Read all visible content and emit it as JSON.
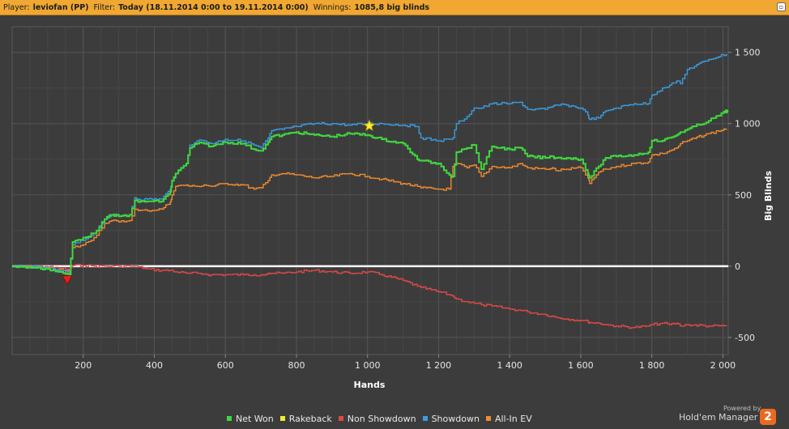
{
  "header": {
    "player_label": "Player:",
    "player_value": "leviofan (PP)",
    "filter_label": "Filter:",
    "filter_value": "Today (18.11.2014 0:00 to 19.11.2014 0:00)",
    "winnings_label": "Winnings:",
    "winnings_value": "1085,8 big blinds"
  },
  "colors": {
    "background": "#3c3c3c",
    "header": "#f0a832",
    "zero_line": "#ffffff",
    "marker_max": "#ffee33",
    "marker_min": "#e02020"
  },
  "chart_data": {
    "type": "line",
    "xlabel": "Hands",
    "ylabel": "Big Blinds",
    "xlim": [
      0,
      2015
    ],
    "ylim": [
      -620,
      1680
    ],
    "x_ticks": [
      200,
      400,
      600,
      800,
      1000,
      1200,
      1400,
      1600,
      1800,
      2000
    ],
    "x_tick_labels": [
      "200",
      "400",
      "600",
      "800",
      "1 000",
      "1 200",
      "1 400",
      "1 600",
      "1 800",
      "2 000"
    ],
    "y_ticks": [
      -500,
      0,
      500,
      1000,
      1500
    ],
    "y_tick_labels": [
      "-500",
      "0",
      "500",
      "1 000",
      "1 500"
    ],
    "grid": true,
    "legend_position": "bottom",
    "series": [
      {
        "name": "Showdown",
        "color": "#3a9be0",
        "x": [
          0,
          60,
          100,
          130,
          150,
          160,
          170,
          200,
          230,
          260,
          280,
          300,
          330,
          345,
          355,
          380,
          420,
          445,
          450,
          460,
          490,
          500,
          520,
          540,
          560,
          600,
          650,
          680,
          700,
          720,
          730,
          760,
          800,
          850,
          900,
          950,
          1000,
          1040,
          1100,
          1140,
          1150,
          1200,
          1230,
          1240,
          1250,
          1280,
          1300,
          1320,
          1350,
          1400,
          1430,
          1450,
          1500,
          1520,
          1530,
          1560,
          1600,
          1620,
          1625,
          1650,
          1670,
          1700,
          1750,
          1790,
          1800,
          1830,
          1850,
          1870,
          1880,
          1900,
          1960,
          2010
        ],
        "y": [
          0,
          -5,
          -15,
          -30,
          -40,
          -45,
          150,
          180,
          230,
          330,
          360,
          350,
          360,
          480,
          470,
          470,
          470,
          540,
          600,
          650,
          720,
          850,
          880,
          880,
          860,
          890,
          880,
          850,
          830,
          900,
          950,
          960,
          980,
          1000,
          1000,
          990,
          1000,
          1000,
          990,
          980,
          900,
          880,
          890,
          900,
          1000,
          1050,
          1110,
          1110,
          1140,
          1140,
          1150,
          1100,
          1100,
          1120,
          1130,
          1130,
          1110,
          1060,
          1030,
          1040,
          1090,
          1110,
          1140,
          1140,
          1200,
          1250,
          1270,
          1300,
          1280,
          1380,
          1450,
          1490
        ]
      },
      {
        "name": "Net Won",
        "color": "#3fd83f",
        "x": [
          0,
          60,
          100,
          130,
          150,
          160,
          170,
          200,
          230,
          260,
          280,
          300,
          330,
          345,
          355,
          380,
          420,
          445,
          450,
          460,
          490,
          500,
          520,
          540,
          560,
          600,
          650,
          680,
          700,
          720,
          730,
          760,
          800,
          850,
          900,
          950,
          1000,
          1040,
          1100,
          1140,
          1150,
          1200,
          1230,
          1240,
          1250,
          1280,
          1300,
          1320,
          1350,
          1400,
          1430,
          1450,
          1500,
          1520,
          1530,
          1560,
          1600,
          1620,
          1625,
          1650,
          1670,
          1700,
          1750,
          1790,
          1800,
          1830,
          1850,
          1870,
          1880,
          1900,
          1960,
          2010
        ],
        "y": [
          0,
          -10,
          -20,
          -40,
          -55,
          -60,
          170,
          200,
          230,
          330,
          360,
          350,
          360,
          460,
          450,
          455,
          455,
          520,
          600,
          650,
          720,
          830,
          860,
          860,
          840,
          870,
          860,
          820,
          810,
          870,
          910,
          920,
          940,
          920,
          910,
          930,
          920,
          890,
          860,
          750,
          740,
          720,
          640,
          630,
          800,
          830,
          850,
          680,
          840,
          820,
          830,
          770,
          760,
          770,
          760,
          760,
          750,
          650,
          620,
          700,
          760,
          770,
          780,
          800,
          880,
          880,
          900,
          920,
          940,
          960,
          1020,
          1085.8
        ]
      },
      {
        "name": "All-In EV",
        "color": "#f08a30",
        "x": [
          0,
          60,
          100,
          130,
          150,
          160,
          170,
          200,
          230,
          260,
          280,
          300,
          330,
          345,
          355,
          380,
          420,
          445,
          450,
          460,
          490,
          500,
          520,
          540,
          560,
          600,
          650,
          680,
          700,
          720,
          730,
          760,
          800,
          850,
          900,
          950,
          1000,
          1040,
          1100,
          1140,
          1150,
          1200,
          1230,
          1240,
          1250,
          1280,
          1300,
          1320,
          1350,
          1400,
          1430,
          1450,
          1500,
          1520,
          1530,
          1560,
          1600,
          1620,
          1625,
          1650,
          1670,
          1700,
          1750,
          1790,
          1800,
          1830,
          1850,
          1870,
          1880,
          1900,
          1960,
          2010
        ],
        "y": [
          0,
          -5,
          -10,
          -25,
          -30,
          -35,
          130,
          150,
          200,
          300,
          320,
          310,
          320,
          400,
          390,
          390,
          400,
          450,
          500,
          560,
          570,
          560,
          560,
          570,
          560,
          580,
          570,
          540,
          550,
          600,
          640,
          650,
          640,
          620,
          630,
          650,
          630,
          610,
          580,
          560,
          550,
          540,
          540,
          700,
          720,
          690,
          710,
          630,
          700,
          690,
          720,
          690,
          680,
          690,
          670,
          680,
          690,
          620,
          580,
          660,
          680,
          700,
          720,
          730,
          780,
          790,
          810,
          830,
          860,
          880,
          930,
          965
        ]
      },
      {
        "name": "Non Showdown",
        "color": "#e04848",
        "x": [
          0,
          60,
          100,
          130,
          150,
          160,
          170,
          200,
          230,
          260,
          280,
          300,
          330,
          345,
          355,
          380,
          420,
          445,
          450,
          460,
          490,
          500,
          520,
          540,
          560,
          600,
          650,
          680,
          700,
          720,
          730,
          760,
          800,
          850,
          900,
          950,
          1000,
          1040,
          1100,
          1140,
          1150,
          1200,
          1230,
          1240,
          1250,
          1280,
          1300,
          1320,
          1350,
          1400,
          1430,
          1450,
          1500,
          1520,
          1530,
          1560,
          1600,
          1620,
          1625,
          1650,
          1670,
          1700,
          1750,
          1790,
          1800,
          1830,
          1850,
          1870,
          1880,
          1900,
          1960,
          2010
        ],
        "y": [
          0,
          0,
          -5,
          -15,
          -20,
          -20,
          5,
          5,
          0,
          0,
          0,
          0,
          0,
          0,
          -5,
          -20,
          -30,
          -30,
          -30,
          -40,
          -50,
          -50,
          -50,
          -55,
          -60,
          -60,
          -60,
          -60,
          -60,
          -50,
          -50,
          -50,
          -40,
          -30,
          -40,
          -50,
          -40,
          -60,
          -100,
          -140,
          -150,
          -180,
          -200,
          -210,
          -230,
          -250,
          -260,
          -270,
          -280,
          -300,
          -310,
          -320,
          -340,
          -350,
          -360,
          -370,
          -380,
          -390,
          -395,
          -400,
          -410,
          -420,
          -430,
          -420,
          -410,
          -400,
          -410,
          -400,
          -420,
          -410,
          -420,
          -420
        ]
      },
      {
        "name": "Rakeback",
        "color": "#eeee30",
        "x": [
          0,
          2010
        ],
        "y": [
          0,
          0
        ]
      }
    ],
    "markers": [
      {
        "name": "max",
        "x": 1005,
        "y": 985
      },
      {
        "name": "min",
        "x": 155,
        "y": -95
      }
    ]
  },
  "legend": {
    "items": [
      {
        "label": "Net Won",
        "color": "#3fd83f"
      },
      {
        "label": "Rakeback",
        "color": "#eeee30"
      },
      {
        "label": "Non Showdown",
        "color": "#e04848"
      },
      {
        "label": "Showdown",
        "color": "#3a9be0"
      },
      {
        "label": "All-In EV",
        "color": "#f08a30"
      }
    ]
  },
  "branding": {
    "powered_by": "Powered by",
    "name": "Hold'em Manager",
    "badge": "2"
  }
}
